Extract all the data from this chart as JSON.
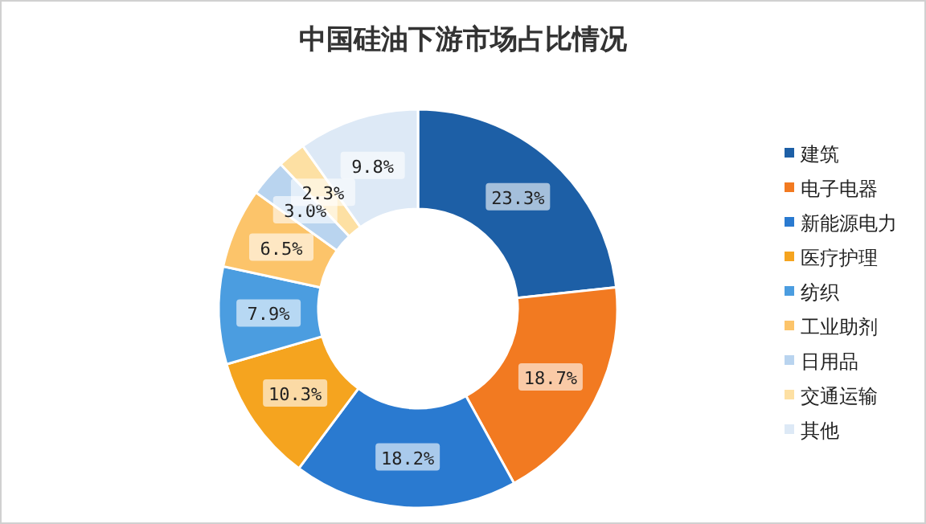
{
  "chart_data": {
    "type": "donut",
    "title": "中国硅油下游市场占比情况",
    "categories": [
      "建筑",
      "电子电器",
      "新能源电力",
      "医疗护理",
      "纺织",
      "工业助剂",
      "日用品",
      "交通运输",
      "其他"
    ],
    "values": [
      23.3,
      18.7,
      18.2,
      10.3,
      7.9,
      6.5,
      3.0,
      2.3,
      9.8
    ],
    "colors": [
      "#1d5fa6",
      "#f27a21",
      "#2a7ad0",
      "#f5a41f",
      "#4b9de0",
      "#fcc46a",
      "#b9d4ef",
      "#fde0a3",
      "#dde9f6"
    ],
    "value_labels": [
      "23.3%",
      "18.7%",
      "18.2%",
      "10.3%",
      "7.9%",
      "6.5%",
      "3.0%",
      "2.3%",
      "9.8%"
    ],
    "legend": "right"
  }
}
